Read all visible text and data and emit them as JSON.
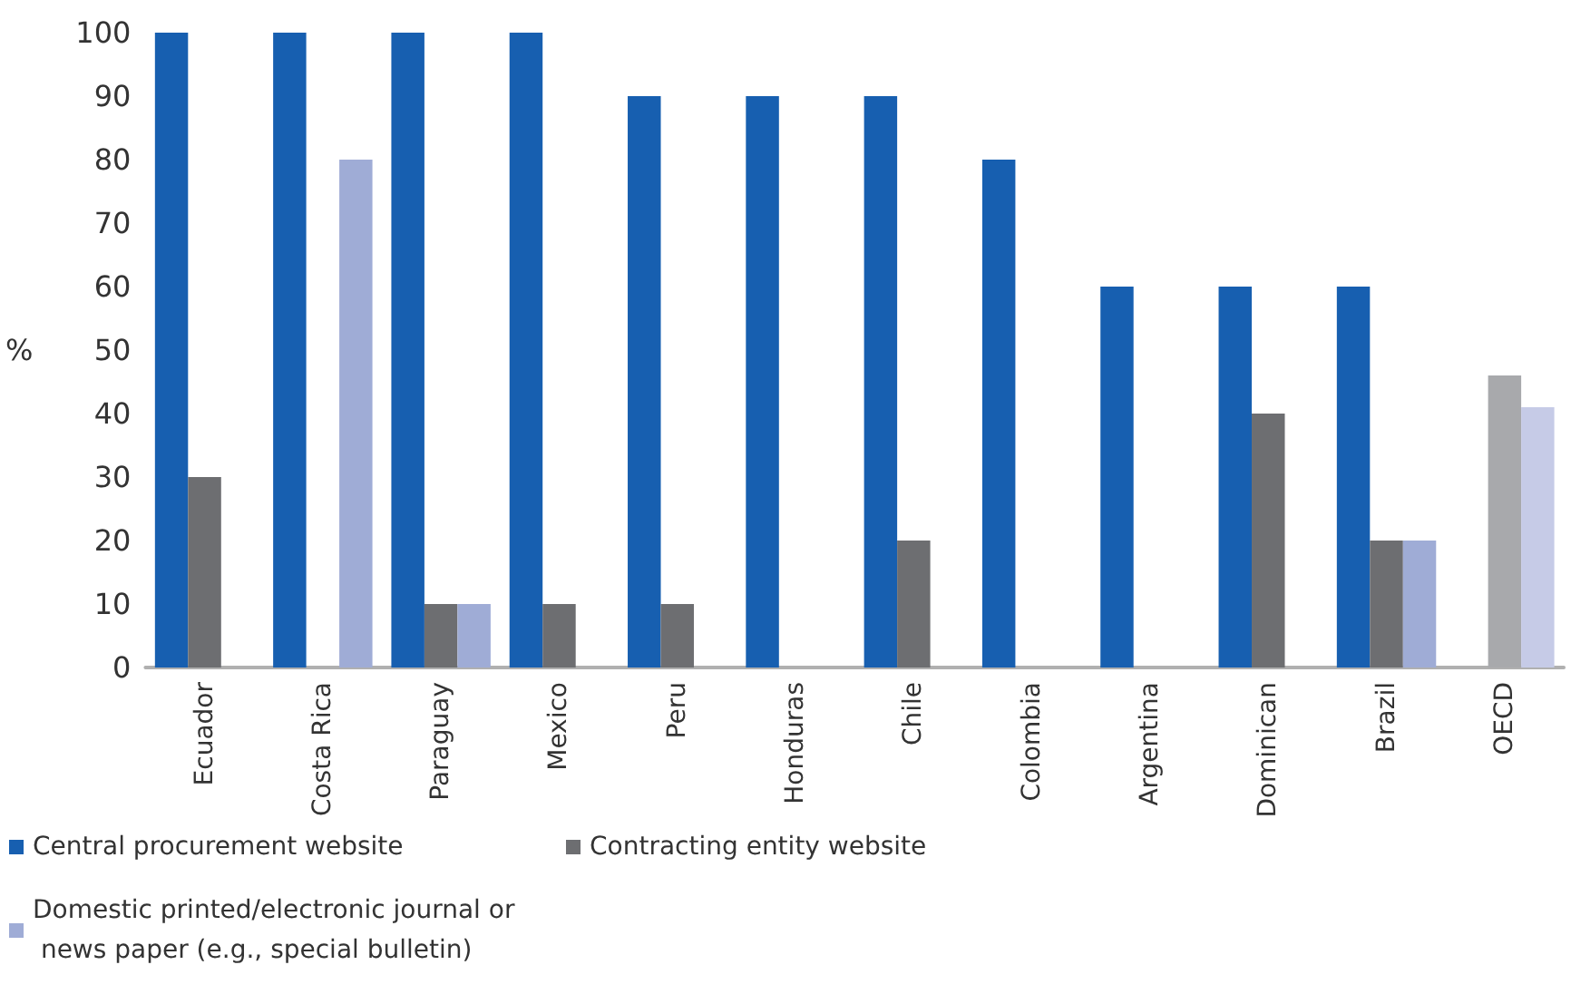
{
  "chart_data": {
    "type": "bar",
    "ylabel": "%",
    "categories": [
      "Ecuador",
      "Costa Rica",
      "Paraguay",
      "Mexico",
      "Peru",
      "Honduras",
      "Chile",
      "Colombia",
      "Argentina",
      "Dominican",
      "Brazil",
      "OECD"
    ],
    "series": [
      {
        "name": "Central procurement website",
        "color": "#175fb0",
        "values": [
          100,
          100,
          100,
          100,
          90,
          90,
          90,
          80,
          60,
          60,
          60,
          null
        ]
      },
      {
        "name": "Contracting entity website",
        "color": "#6d6e71",
        "colors": [
          "#6d6e71",
          "#6d6e71",
          "#6d6e71",
          "#6d6e71",
          "#6d6e71",
          "#6d6e71",
          "#6d6e71",
          "#6d6e71",
          "#6d6e71",
          "#6d6e71",
          "#6d6e71",
          "#a8a9ac"
        ],
        "values": [
          30,
          0,
          10,
          10,
          10,
          0,
          20,
          0,
          0,
          40,
          20,
          46
        ]
      },
      {
        "name": "Domestic printed/electronic journal or news paper (e.g., special bulletin)",
        "color": "#9facd6",
        "colors": [
          "#9facd6",
          "#9facd6",
          "#9facd6",
          "#9facd6",
          "#9facd6",
          "#9facd6",
          "#9facd6",
          "#9facd6",
          "#9facd6",
          "#9facd6",
          "#9facd6",
          "#c6cbe7"
        ],
        "values": [
          0,
          80,
          10,
          0,
          0,
          0,
          0,
          0,
          0,
          0,
          20,
          41
        ]
      }
    ],
    "ylim": [
      0,
      100
    ],
    "yticks": [
      0,
      10,
      20,
      30,
      40,
      50,
      60,
      70,
      80,
      90,
      100
    ],
    "grid": false,
    "legend": "bottom"
  }
}
